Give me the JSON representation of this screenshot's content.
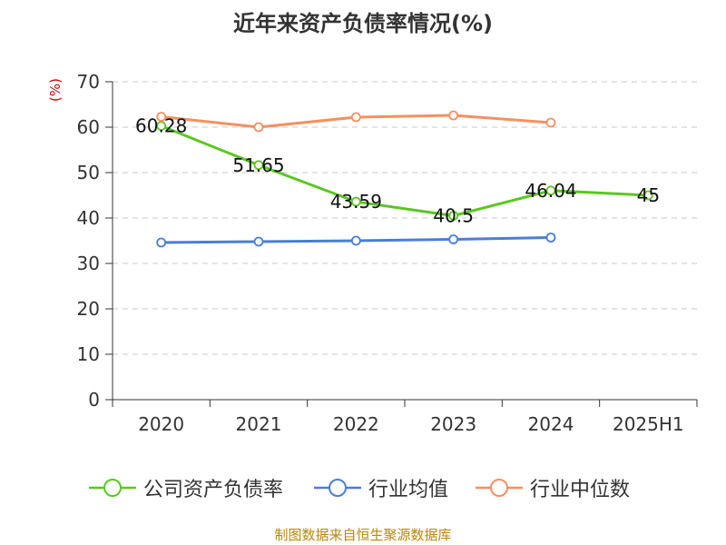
{
  "chart_data": {
    "type": "line",
    "title": "近年来资产负债率情况(%)",
    "unit_label": "(%)",
    "categories": [
      "2020",
      "2021",
      "2022",
      "2023",
      "2024",
      "2025H1"
    ],
    "ylim": [
      0,
      70
    ],
    "yticks": [
      "0",
      "10",
      "20",
      "30",
      "40",
      "50",
      "60",
      "70"
    ],
    "grid": true,
    "legend_position": "bottom",
    "series": [
      {
        "name": "公司资产负债率",
        "color": "#5ac721",
        "values": [
          60.28,
          51.65,
          43.59,
          40.5,
          46.04,
          45
        ],
        "labels": [
          "60.28",
          "51.65",
          "43.59",
          "40.5",
          "46.04",
          "45"
        ]
      },
      {
        "name": "行业均值",
        "color": "#4a7ed8",
        "values": [
          34.6,
          34.8,
          35.0,
          35.3,
          35.7,
          null
        ]
      },
      {
        "name": "行业中位数",
        "color": "#f59060",
        "values": [
          62.3,
          60.0,
          62.2,
          62.6,
          61.0,
          null
        ]
      }
    ]
  },
  "source": "制图数据来自恒生聚源数据库"
}
